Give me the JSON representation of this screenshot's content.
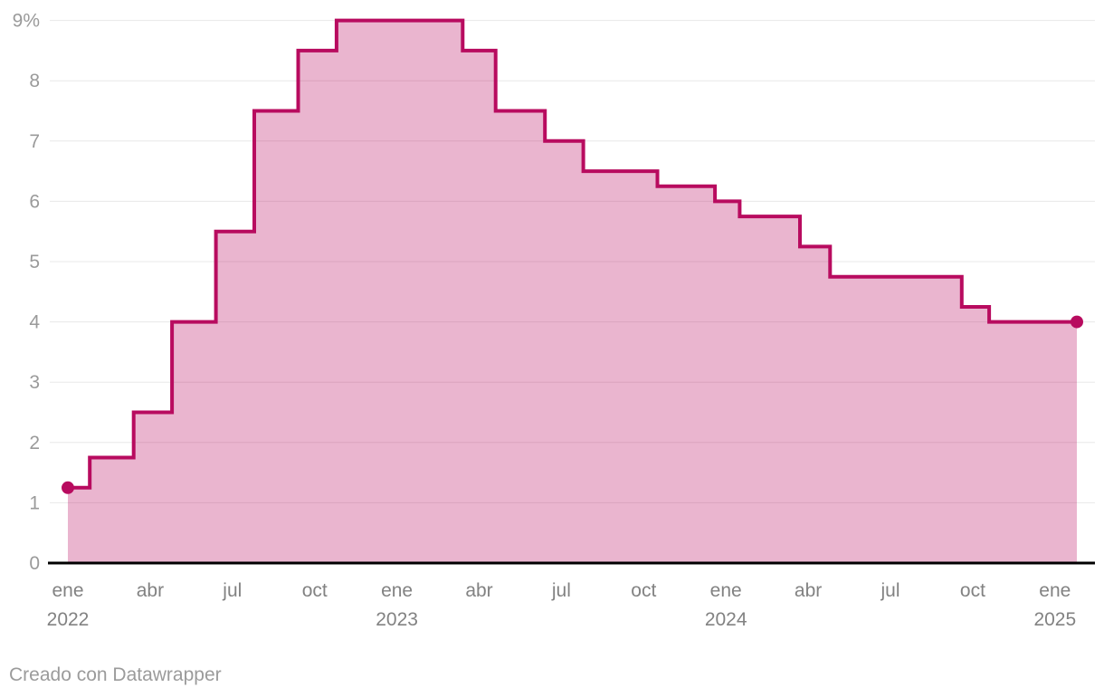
{
  "footer": {
    "prefix": "Creado con ",
    "link_label": "Datawrapper"
  },
  "colors": {
    "line": "#b80b5f",
    "fill": "rgba(184,11,95,0.30)",
    "grid": "#e8e8e8",
    "baseline": "#000000",
    "y_label": "#9a9a9a",
    "x_label": "#828282",
    "footer_text": "#9b9b9b"
  },
  "chart_data": {
    "type": "area",
    "subtype": "step",
    "title": "",
    "unit": "%",
    "ylim": [
      0,
      9
    ],
    "grid": true,
    "legend": "none",
    "y_ticks": [
      {
        "value": 0,
        "label": "0"
      },
      {
        "value": 1,
        "label": "1"
      },
      {
        "value": 2,
        "label": "2"
      },
      {
        "value": 3,
        "label": "3"
      },
      {
        "value": 4,
        "label": "4"
      },
      {
        "value": 5,
        "label": "5"
      },
      {
        "value": 6,
        "label": "6"
      },
      {
        "value": 7,
        "label": "7"
      },
      {
        "value": 8,
        "label": "8"
      },
      {
        "value": 9,
        "label": "9%"
      }
    ],
    "x_unit": "months_since_jan_2022",
    "x_ticks": [
      {
        "month": 0,
        "label": "ene",
        "year": "2022"
      },
      {
        "month": 3,
        "label": "abr"
      },
      {
        "month": 6,
        "label": "jul"
      },
      {
        "month": 9,
        "label": "oct"
      },
      {
        "month": 12,
        "label": "ene",
        "year": "2023"
      },
      {
        "month": 15,
        "label": "abr"
      },
      {
        "month": 18,
        "label": "jul"
      },
      {
        "month": 21,
        "label": "oct"
      },
      {
        "month": 24,
        "label": "ene",
        "year": "2024"
      },
      {
        "month": 27,
        "label": "abr"
      },
      {
        "month": 30,
        "label": "jul"
      },
      {
        "month": 33,
        "label": "oct"
      },
      {
        "month": 36,
        "label": "ene",
        "year": "2025"
      }
    ],
    "steps": [
      [
        0.0,
        1.25
      ],
      [
        0.8,
        1.75
      ],
      [
        2.4,
        2.5
      ],
      [
        3.8,
        4.0
      ],
      [
        5.4,
        5.5
      ],
      [
        6.8,
        7.5
      ],
      [
        8.4,
        8.5
      ],
      [
        9.8,
        9.0
      ],
      [
        14.4,
        8.5
      ],
      [
        15.6,
        7.5
      ],
      [
        17.4,
        7.0
      ],
      [
        18.8,
        6.5
      ],
      [
        21.5,
        6.25
      ],
      [
        23.6,
        6.0
      ],
      [
        24.5,
        5.75
      ],
      [
        26.7,
        5.25
      ],
      [
        27.8,
        4.75
      ],
      [
        32.6,
        4.25
      ],
      [
        33.6,
        4.0
      ]
    ],
    "x_end": 36.8,
    "start_marker": {
      "x": 0.0,
      "value": 1.25
    },
    "end_marker": {
      "x": 36.8,
      "value": 4.0
    }
  }
}
